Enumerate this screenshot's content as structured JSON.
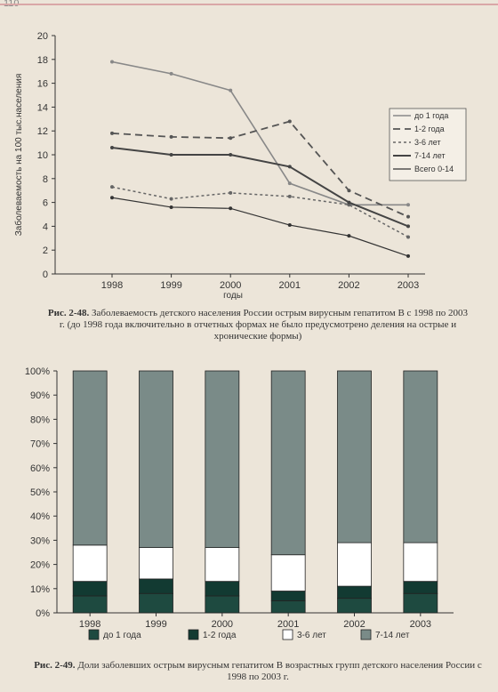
{
  "page_number": "110",
  "chart_data": [
    {
      "type": "line",
      "ylabel": "Заболеваемость на 100 тыс.населения",
      "xlabel": "годы",
      "x": [
        "1998",
        "1999",
        "2000",
        "2001",
        "2002",
        "2003"
      ],
      "ylim": [
        0,
        20
      ],
      "yticks": [
        "0",
        "2",
        "4",
        "6",
        "8",
        "10",
        "12",
        "14",
        "16",
        "18",
        "20"
      ],
      "legend_position": "right",
      "series": [
        {
          "name": "до 1 года",
          "values": [
            17.8,
            16.8,
            15.4,
            7.6,
            5.8,
            5.8
          ],
          "color": "#888888",
          "dash": "solid",
          "width": 1.6
        },
        {
          "name": "1-2 года",
          "values": [
            11.8,
            11.5,
            11.4,
            12.8,
            7.0,
            4.8
          ],
          "color": "#555555",
          "dash": "8,5",
          "width": 1.8
        },
        {
          "name": "3-6 лет",
          "values": [
            7.3,
            6.3,
            6.8,
            6.5,
            5.8,
            3.1
          ],
          "color": "#666666",
          "dash": "3,3",
          "width": 1.5
        },
        {
          "name": "7-14 лет",
          "values": [
            10.6,
            10.0,
            10.0,
            9.0,
            6.0,
            4.0
          ],
          "color": "#444444",
          "dash": "solid",
          "width": 2.0
        },
        {
          "name": "Всего 0-14",
          "values": [
            6.4,
            5.6,
            5.5,
            4.1,
            3.2,
            1.5
          ],
          "color": "#333333",
          "dash": "solid",
          "width": 1.2
        }
      ],
      "caption_label": "Рис. 2-48.",
      "caption_text": "Заболеваемость детского населения России острым вирусным гепатитом В с 1998 по 2003 г. (до 1998 года включительно в отчетных формах не было предусмотрено деления на острые и хронические формы)"
    },
    {
      "type": "bar",
      "stacked": true,
      "categories": [
        "1998",
        "1999",
        "2000",
        "2001",
        "2002",
        "2003"
      ],
      "ylim": [
        0,
        100
      ],
      "yticks": [
        "0%",
        "10%",
        "20%",
        "30%",
        "40%",
        "50%",
        "60%",
        "70%",
        "80%",
        "90%",
        "100%"
      ],
      "legend_position": "bottom",
      "series": [
        {
          "name": "до 1 года",
          "values": [
            7,
            8,
            7,
            5,
            6,
            8
          ],
          "color": "#1e4a40"
        },
        {
          "name": "1-2 года",
          "values": [
            6,
            6,
            6,
            4,
            5,
            5
          ],
          "color": "#123a32"
        },
        {
          "name": "3-6 лет",
          "values": [
            15,
            13,
            14,
            15,
            18,
            16
          ],
          "color": "#ffffff"
        },
        {
          "name": "7-14 лет",
          "values": [
            72,
            73,
            73,
            76,
            71,
            71
          ],
          "color": "#7a8b88"
        }
      ],
      "caption_label": "Рис. 2-49.",
      "caption_text": "Доли заболевших острым вирусным гепатитом В возрастных групп детского населения России с 1998 по 2003 г."
    }
  ]
}
